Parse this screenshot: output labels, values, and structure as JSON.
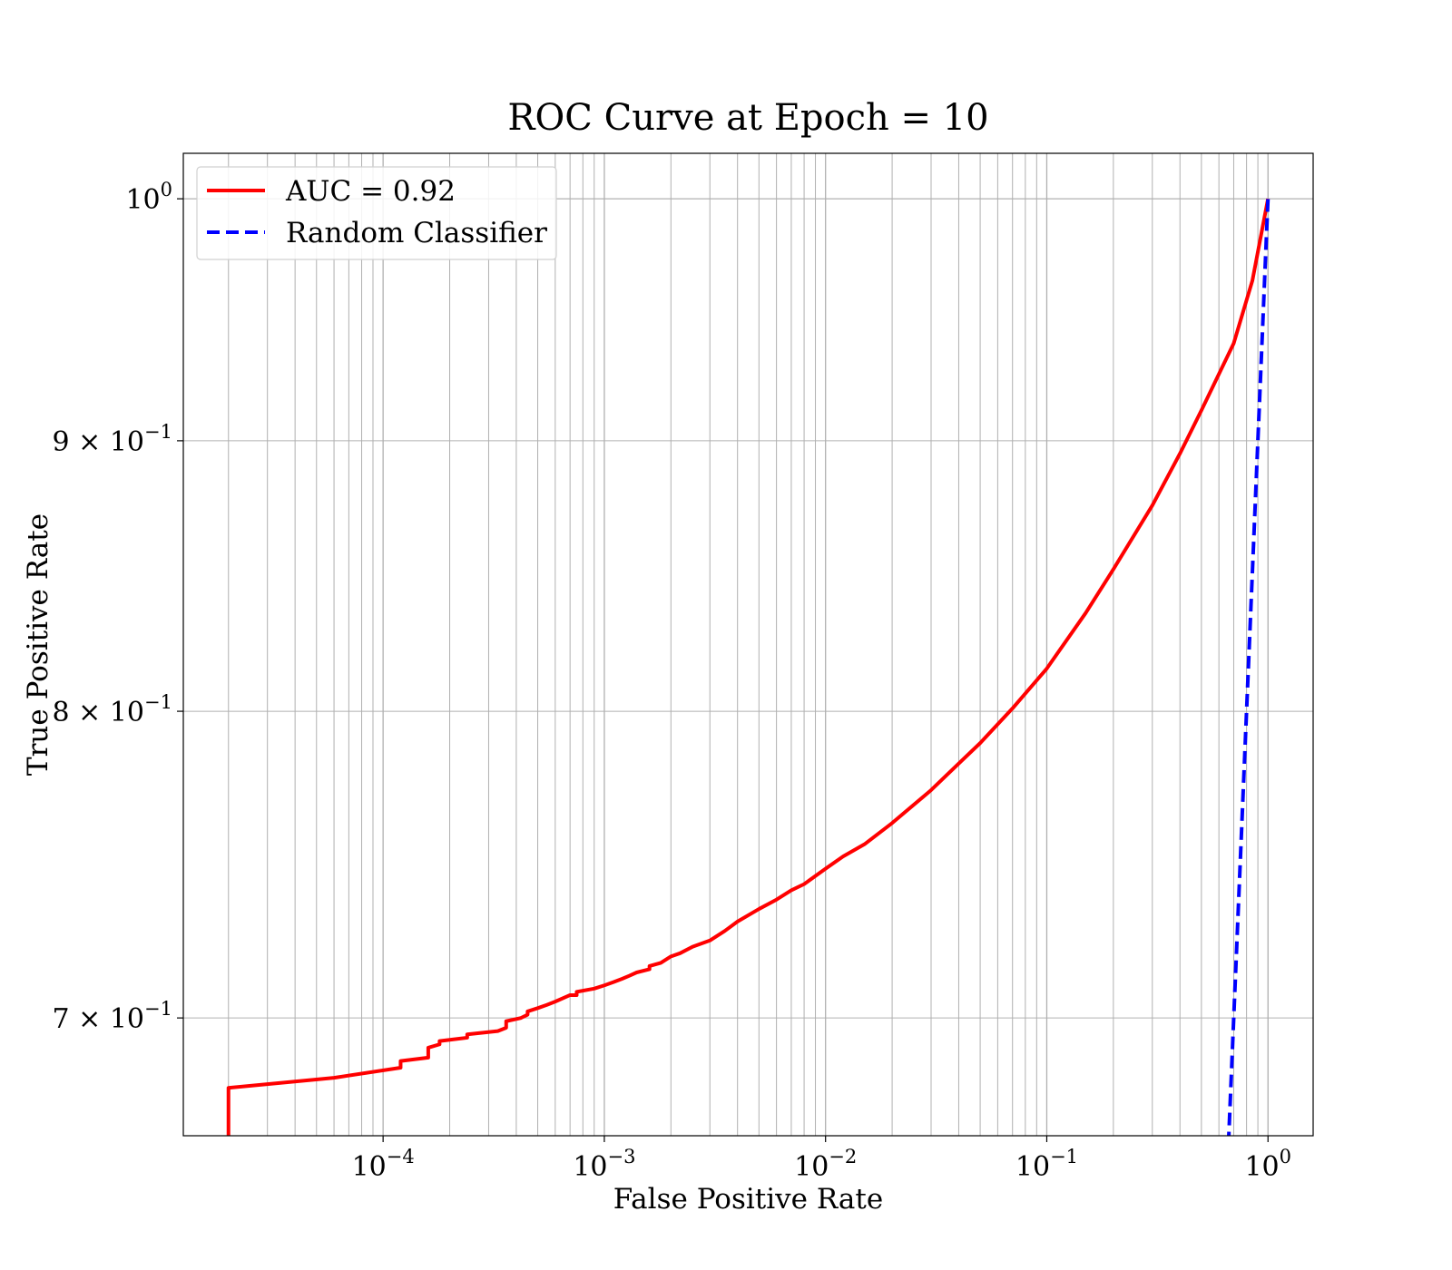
{
  "chart_data": {
    "type": "line",
    "title": "ROC Curve at Epoch = 10",
    "xlabel": "False Positive Rate",
    "ylabel": "True Positive Rate",
    "xscale": "log",
    "yscale": "log",
    "xlim": [
      1.25e-05,
      1.6
    ],
    "ylim": [
      0.665,
      1.02
    ],
    "grid": true,
    "legend_position": "upper left",
    "x_ticks": [
      {
        "value": 0.0001,
        "base": "10",
        "exp": "−4"
      },
      {
        "value": 0.001,
        "base": "10",
        "exp": "−3"
      },
      {
        "value": 0.01,
        "base": "10",
        "exp": "−2"
      },
      {
        "value": 0.1,
        "base": "10",
        "exp": "−1"
      },
      {
        "value": 1,
        "base": "10",
        "exp": "0"
      }
    ],
    "y_ticks": [
      {
        "value": 1.0,
        "base": "10",
        "exp": "0"
      },
      {
        "value": 0.9,
        "base": "9 × 10",
        "exp": "−1"
      },
      {
        "value": 0.8,
        "base": "8 × 10",
        "exp": "−1"
      },
      {
        "value": 0.7,
        "base": "7 × 10",
        "exp": "−1"
      }
    ],
    "series": [
      {
        "name": "AUC = 0.92",
        "color": "#ff0000",
        "style": "solid",
        "x": [
          2e-05,
          2e-05,
          2e-05,
          2e-05,
          6e-05,
          0.00012,
          0.00012,
          0.00016,
          0.00016,
          0.00018,
          0.00018,
          0.00024,
          0.00024,
          0.00033,
          0.00036,
          0.00036,
          0.00042,
          0.00045,
          0.00045,
          0.0005,
          0.00055,
          0.0006,
          0.0007,
          0.00075,
          0.00075,
          0.0009,
          0.001,
          0.0011,
          0.0012,
          0.0013,
          0.0014,
          0.0016,
          0.0016,
          0.0018,
          0.002,
          0.0022,
          0.0025,
          0.003,
          0.0035,
          0.004,
          0.005,
          0.006,
          0.007,
          0.008,
          0.01,
          0.012,
          0.015,
          0.02,
          0.03,
          0.04,
          0.05,
          0.07,
          0.1,
          0.15,
          0.2,
          0.3,
          0.4,
          0.5,
          0.7,
          0.85,
          1.0
        ],
        "y": [
          0.665,
          0.67,
          0.675,
          0.679,
          0.682,
          0.685,
          0.687,
          0.688,
          0.691,
          0.692,
          0.693,
          0.694,
          0.695,
          0.696,
          0.697,
          0.699,
          0.7,
          0.701,
          0.702,
          0.703,
          0.704,
          0.705,
          0.707,
          0.707,
          0.708,
          0.709,
          0.71,
          0.711,
          0.712,
          0.713,
          0.714,
          0.715,
          0.716,
          0.717,
          0.719,
          0.72,
          0.722,
          0.724,
          0.727,
          0.73,
          0.734,
          0.737,
          0.74,
          0.742,
          0.747,
          0.751,
          0.755,
          0.762,
          0.773,
          0.782,
          0.789,
          0.801,
          0.815,
          0.835,
          0.851,
          0.875,
          0.895,
          0.912,
          0.939,
          0.965,
          1.0
        ]
      },
      {
        "name": "Random Classifier",
        "color": "#0000ff",
        "style": "dashed",
        "x": [
          0.62,
          0.7,
          0.8,
          0.9,
          1.0
        ],
        "y": [
          0.62,
          0.7,
          0.8,
          0.9,
          1.0
        ]
      }
    ]
  }
}
